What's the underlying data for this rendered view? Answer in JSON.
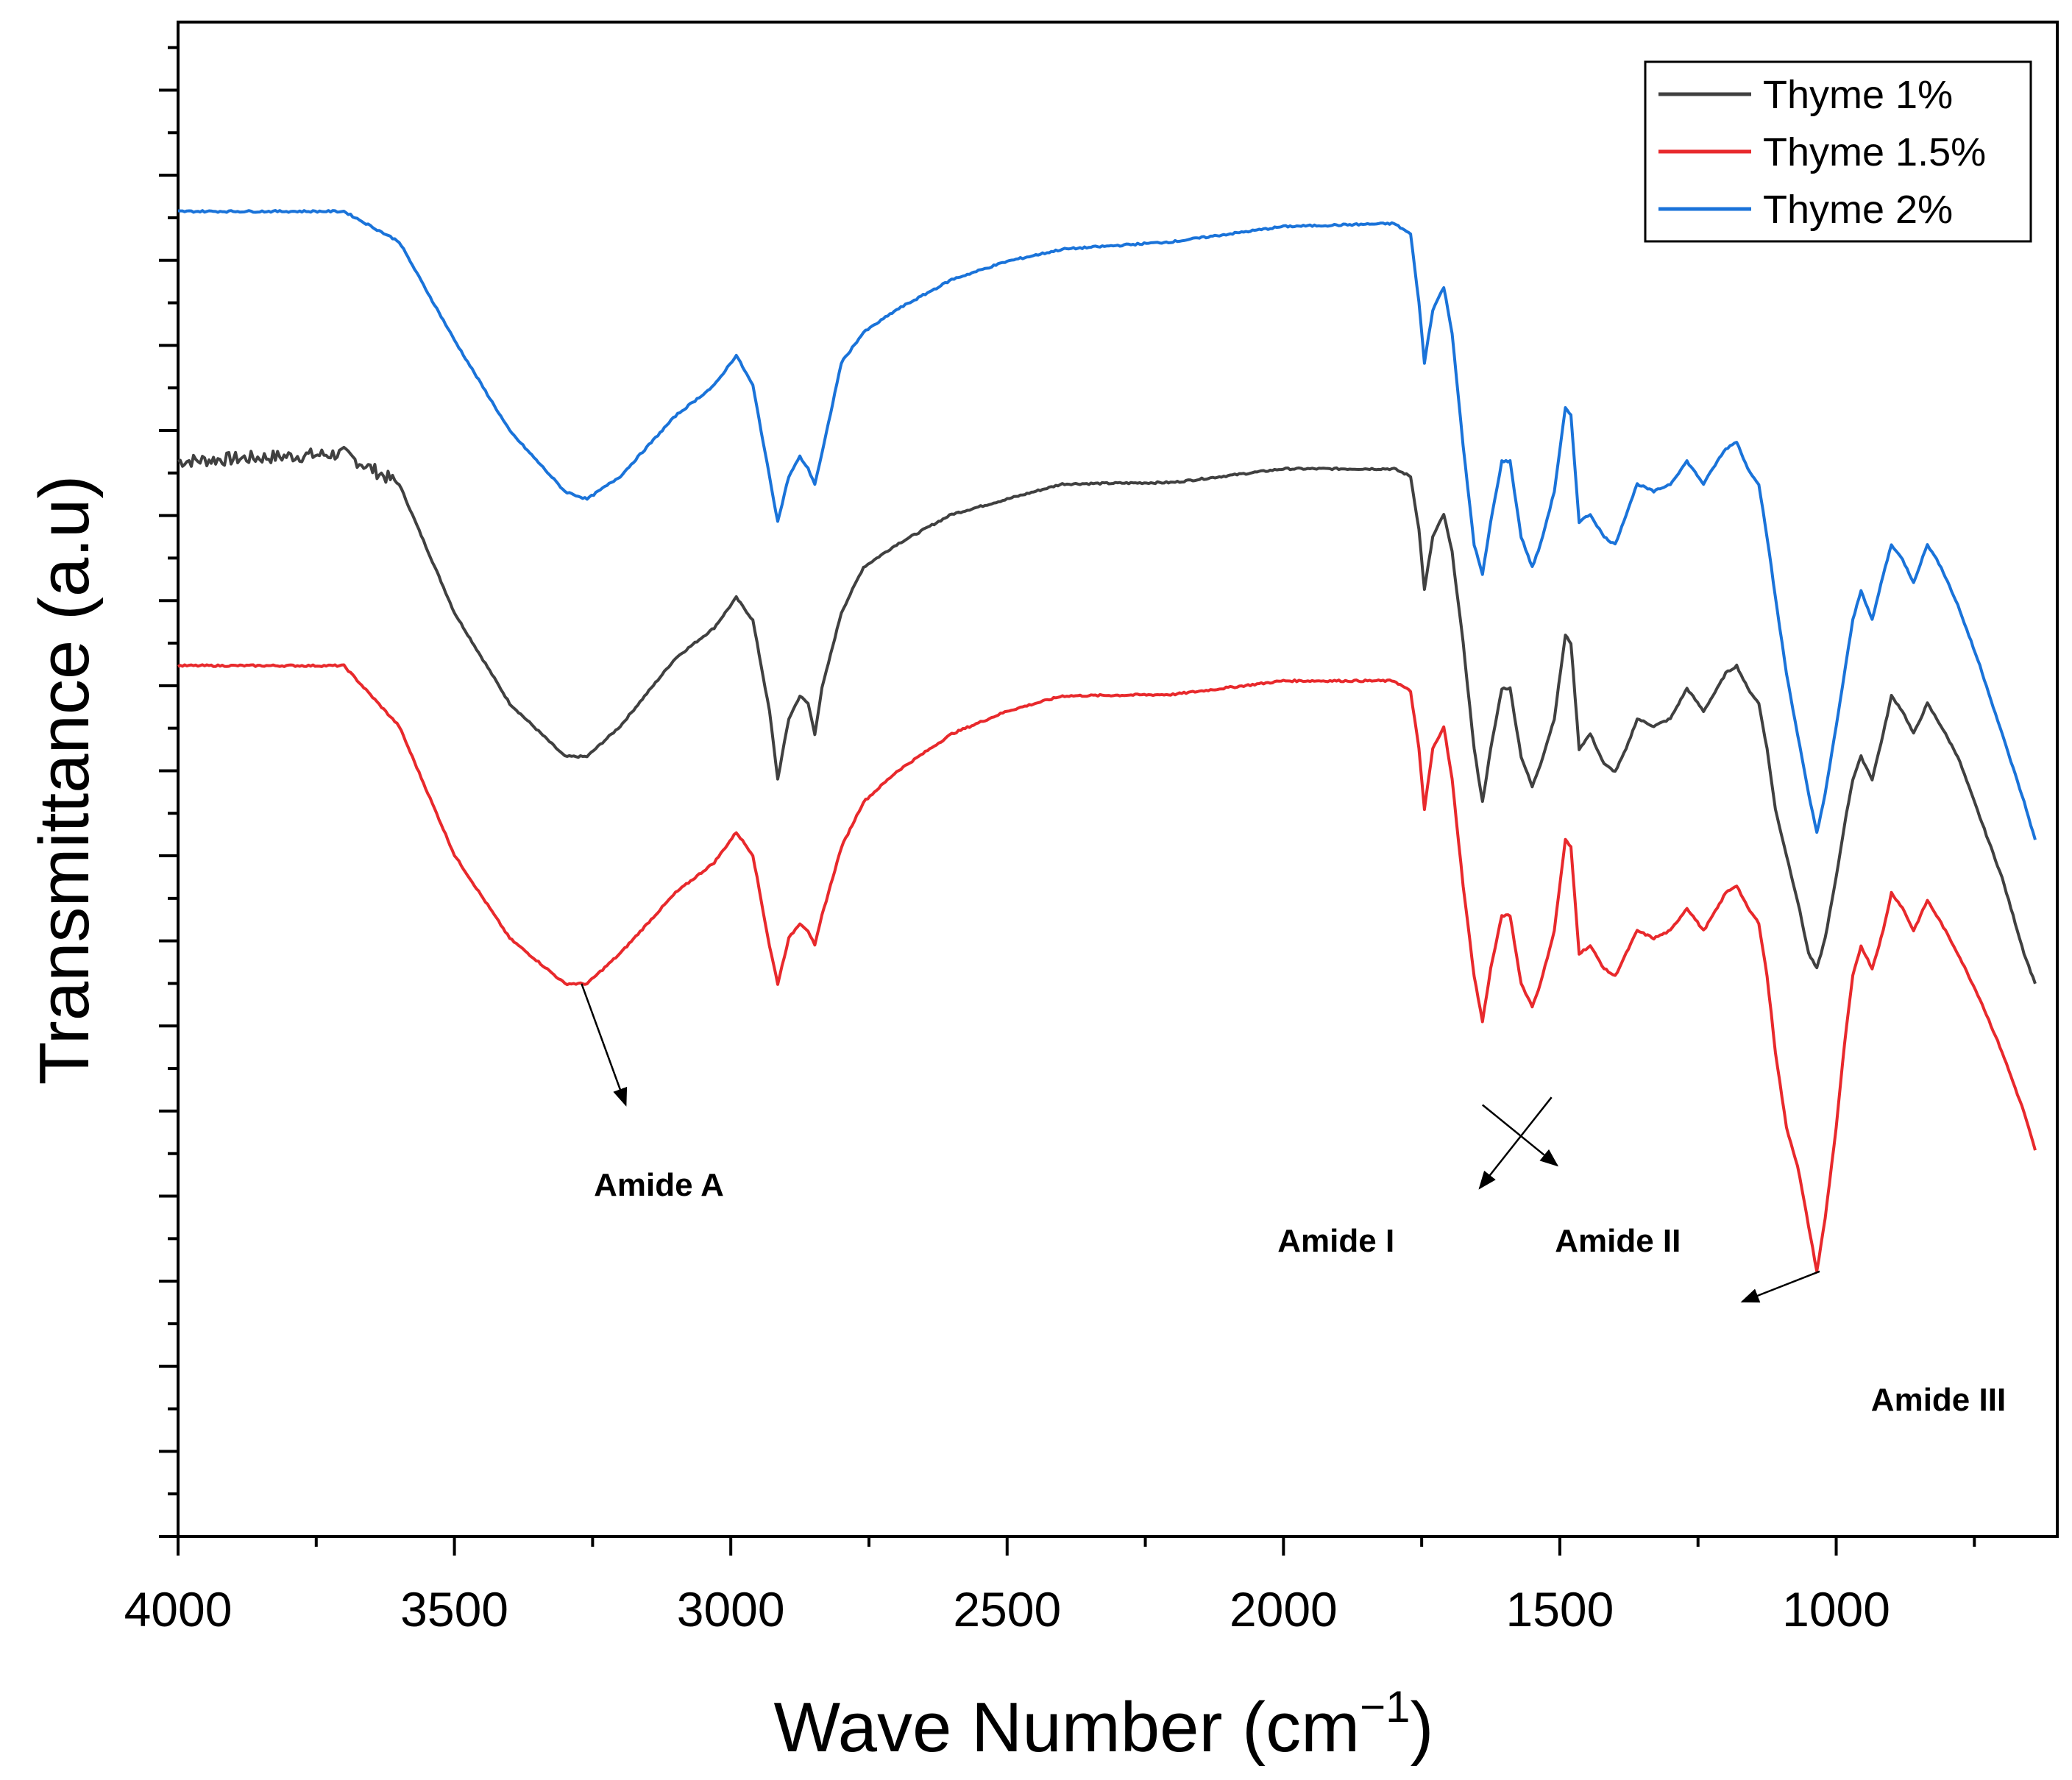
{
  "chart_data": {
    "type": "line",
    "xlabel": "Wave Number (cm",
    "xlabel_sup": "−1",
    "xlabel_end": ")",
    "ylabel": "Transmittance (a.u)",
    "xlim": [
      4000,
      600
    ],
    "ylim": [
      0,
      100
    ],
    "x_ticks": [
      "4000",
      "3500",
      "3000",
      "2500",
      "2000",
      "1500",
      "1000"
    ],
    "x_tick_values": [
      4000,
      3500,
      3000,
      2500,
      2000,
      1500,
      1000
    ],
    "y_tick_count": 35,
    "legend_position": "top-right",
    "series": [
      {
        "name": "Thyme 1%",
        "color": "#404040",
        "noise_before": 3600,
        "points": [
          [
            4000,
            71
          ],
          [
            3700,
            71.5
          ],
          [
            3600,
            69.5
          ],
          [
            3500,
            61
          ],
          [
            3400,
            55
          ],
          [
            3300,
            51.5
          ],
          [
            3260,
            51.5
          ],
          [
            3200,
            53.5
          ],
          [
            3100,
            58
          ],
          [
            3030,
            60
          ],
          [
            2990,
            62
          ],
          [
            2960,
            60.5
          ],
          [
            2930,
            54.5
          ],
          [
            2915,
            50
          ],
          [
            2895,
            54
          ],
          [
            2875,
            55.5
          ],
          [
            2860,
            55
          ],
          [
            2848,
            53
          ],
          [
            2835,
            56
          ],
          [
            2800,
            61
          ],
          [
            2760,
            64
          ],
          [
            2700,
            65.5
          ],
          [
            2600,
            67.5
          ],
          [
            2500,
            68.5
          ],
          [
            2400,
            69.5
          ],
          [
            2200,
            69.6
          ],
          [
            2000,
            70.5
          ],
          [
            1800,
            70.5
          ],
          [
            1770,
            70
          ],
          [
            1755,
            66.5
          ],
          [
            1745,
            62.5
          ],
          [
            1730,
            66
          ],
          [
            1710,
            67.5
          ],
          [
            1695,
            65
          ],
          [
            1675,
            59
          ],
          [
            1655,
            52
          ],
          [
            1640,
            48.5
          ],
          [
            1625,
            52
          ],
          [
            1605,
            56
          ],
          [
            1590,
            56
          ],
          [
            1570,
            51.5
          ],
          [
            1550,
            49.5
          ],
          [
            1535,
            51
          ],
          [
            1510,
            54
          ],
          [
            1490,
            59.5
          ],
          [
            1480,
            59
          ],
          [
            1465,
            52
          ],
          [
            1445,
            53
          ],
          [
            1420,
            51
          ],
          [
            1400,
            50.5
          ],
          [
            1380,
            52
          ],
          [
            1360,
            54
          ],
          [
            1330,
            53.5
          ],
          [
            1300,
            54
          ],
          [
            1270,
            56
          ],
          [
            1240,
            54.5
          ],
          [
            1215,
            56
          ],
          [
            1200,
            57
          ],
          [
            1180,
            57.5
          ],
          [
            1160,
            56
          ],
          [
            1140,
            55
          ],
          [
            1125,
            52
          ],
          [
            1110,
            48
          ],
          [
            1090,
            45
          ],
          [
            1070,
            42
          ],
          [
            1050,
            38.5
          ],
          [
            1035,
            37.5
          ],
          [
            1020,
            39.5
          ],
          [
            1000,
            43.5
          ],
          [
            985,
            47
          ],
          [
            970,
            50
          ],
          [
            955,
            51.5
          ],
          [
            935,
            50
          ],
          [
            915,
            53
          ],
          [
            900,
            55.5
          ],
          [
            880,
            54.5
          ],
          [
            860,
            53
          ],
          [
            835,
            55
          ],
          [
            810,
            53.5
          ],
          [
            780,
            51.5
          ],
          [
            740,
            47.5
          ],
          [
            700,
            43.5
          ],
          [
            660,
            38.5
          ],
          [
            640,
            36.5
          ]
        ]
      },
      {
        "name": "Thyme 1.5%",
        "color": "#e8292c",
        "noise_before": 0,
        "points": [
          [
            4000,
            57.5
          ],
          [
            3700,
            57.5
          ],
          [
            3600,
            53.5
          ],
          [
            3500,
            45
          ],
          [
            3400,
            39.5
          ],
          [
            3300,
            36.5
          ],
          [
            3260,
            36.5
          ],
          [
            3200,
            38.5
          ],
          [
            3100,
            42.5
          ],
          [
            3030,
            44.5
          ],
          [
            2990,
            46.5
          ],
          [
            2960,
            45
          ],
          [
            2930,
            39
          ],
          [
            2915,
            36.5
          ],
          [
            2895,
            39.5
          ],
          [
            2875,
            40.5
          ],
          [
            2860,
            40
          ],
          [
            2848,
            39
          ],
          [
            2835,
            41
          ],
          [
            2800,
            45.5
          ],
          [
            2760,
            48.5
          ],
          [
            2700,
            50.5
          ],
          [
            2600,
            53
          ],
          [
            2500,
            54.5
          ],
          [
            2400,
            55.5
          ],
          [
            2200,
            55.6
          ],
          [
            2000,
            56.5
          ],
          [
            1800,
            56.5
          ],
          [
            1770,
            55.8
          ],
          [
            1755,
            52
          ],
          [
            1745,
            48
          ],
          [
            1730,
            52
          ],
          [
            1710,
            53.5
          ],
          [
            1695,
            50
          ],
          [
            1675,
            43
          ],
          [
            1655,
            37
          ],
          [
            1640,
            34
          ],
          [
            1625,
            37.5
          ],
          [
            1605,
            41
          ],
          [
            1590,
            41
          ],
          [
            1570,
            36.5
          ],
          [
            1550,
            35
          ],
          [
            1535,
            36.5
          ],
          [
            1510,
            40
          ],
          [
            1490,
            46
          ],
          [
            1480,
            45.5
          ],
          [
            1465,
            38.5
          ],
          [
            1445,
            39
          ],
          [
            1420,
            37.5
          ],
          [
            1400,
            37
          ],
          [
            1380,
            38.5
          ],
          [
            1360,
            40
          ],
          [
            1330,
            39.5
          ],
          [
            1300,
            40
          ],
          [
            1270,
            41.5
          ],
          [
            1240,
            40
          ],
          [
            1215,
            41.5
          ],
          [
            1200,
            42.5
          ],
          [
            1180,
            43
          ],
          [
            1160,
            41.5
          ],
          [
            1140,
            40.5
          ],
          [
            1125,
            37
          ],
          [
            1110,
            32
          ],
          [
            1090,
            27
          ],
          [
            1070,
            24.5
          ],
          [
            1050,
            20.5
          ],
          [
            1035,
            17.5
          ],
          [
            1020,
            21
          ],
          [
            1000,
            27
          ],
          [
            985,
            32.5
          ],
          [
            970,
            37
          ],
          [
            955,
            39
          ],
          [
            935,
            37.5
          ],
          [
            915,
            40
          ],
          [
            900,
            42.5
          ],
          [
            880,
            41.5
          ],
          [
            860,
            40
          ],
          [
            835,
            42
          ],
          [
            810,
            40.5
          ],
          [
            780,
            38.5
          ],
          [
            740,
            35.5
          ],
          [
            700,
            32
          ],
          [
            660,
            28
          ],
          [
            640,
            25.5
          ]
        ]
      },
      {
        "name": "Thyme 2%",
        "color": "#1a73d9",
        "noise_before": 0,
        "points": [
          [
            4000,
            87.5
          ],
          [
            3700,
            87.5
          ],
          [
            3600,
            85.5
          ],
          [
            3500,
            79
          ],
          [
            3400,
            73
          ],
          [
            3300,
            69
          ],
          [
            3260,
            68.5
          ],
          [
            3200,
            70
          ],
          [
            3100,
            74
          ],
          [
            3030,
            76
          ],
          [
            2990,
            78
          ],
          [
            2960,
            76
          ],
          [
            2930,
            70
          ],
          [
            2915,
            67
          ],
          [
            2895,
            70
          ],
          [
            2875,
            71.3
          ],
          [
            2860,
            70.5
          ],
          [
            2848,
            69.5
          ],
          [
            2835,
            71.5
          ],
          [
            2800,
            77.5
          ],
          [
            2760,
            79.5
          ],
          [
            2700,
            81
          ],
          [
            2600,
            83
          ],
          [
            2500,
            84.2
          ],
          [
            2400,
            85
          ],
          [
            2200,
            85.5
          ],
          [
            2000,
            86.5
          ],
          [
            1800,
            86.7
          ],
          [
            1770,
            86
          ],
          [
            1755,
            81.5
          ],
          [
            1745,
            77.5
          ],
          [
            1730,
            81
          ],
          [
            1710,
            82.5
          ],
          [
            1695,
            79.5
          ],
          [
            1675,
            72
          ],
          [
            1655,
            65.5
          ],
          [
            1640,
            63.5
          ],
          [
            1625,
            67
          ],
          [
            1605,
            71
          ],
          [
            1590,
            71
          ],
          [
            1570,
            66
          ],
          [
            1550,
            64
          ],
          [
            1535,
            65.5
          ],
          [
            1510,
            69
          ],
          [
            1490,
            74.5
          ],
          [
            1480,
            74
          ],
          [
            1465,
            67
          ],
          [
            1445,
            67.5
          ],
          [
            1420,
            66
          ],
          [
            1400,
            65.5
          ],
          [
            1380,
            67.5
          ],
          [
            1360,
            69.5
          ],
          [
            1330,
            69
          ],
          [
            1300,
            69.5
          ],
          [
            1270,
            71
          ],
          [
            1240,
            69.5
          ],
          [
            1215,
            71
          ],
          [
            1200,
            71.8
          ],
          [
            1180,
            72.3
          ],
          [
            1160,
            70.5
          ],
          [
            1140,
            69.5
          ],
          [
            1125,
            66
          ],
          [
            1110,
            62
          ],
          [
            1090,
            57
          ],
          [
            1070,
            53
          ],
          [
            1050,
            49
          ],
          [
            1035,
            46.5
          ],
          [
            1020,
            49
          ],
          [
            1000,
            53.5
          ],
          [
            985,
            57
          ],
          [
            970,
            60.5
          ],
          [
            955,
            62.5
          ],
          [
            935,
            60.5
          ],
          [
            915,
            63.5
          ],
          [
            900,
            65.5
          ],
          [
            880,
            64.5
          ],
          [
            860,
            63
          ],
          [
            835,
            65.5
          ],
          [
            810,
            64
          ],
          [
            780,
            61.5
          ],
          [
            740,
            57.5
          ],
          [
            700,
            53
          ],
          [
            660,
            48.5
          ],
          [
            640,
            46
          ]
        ]
      }
    ],
    "annotations": [
      {
        "label": "Amide A",
        "x": 3270,
        "y": 36.5,
        "dx_data": -80,
        "dy_data": -8
      },
      {
        "label": "Amide I",
        "x": 1640,
        "y": 28.5,
        "dx_data": -135,
        "dy_data": -4
      },
      {
        "label": "Amide II",
        "x": 1515,
        "y": 29,
        "dx_data": 130,
        "dy_data": -6
      },
      {
        "label": "Amide III",
        "x": 1030,
        "y": 17.5,
        "dx_data": 140,
        "dy_data": -2
      }
    ]
  }
}
